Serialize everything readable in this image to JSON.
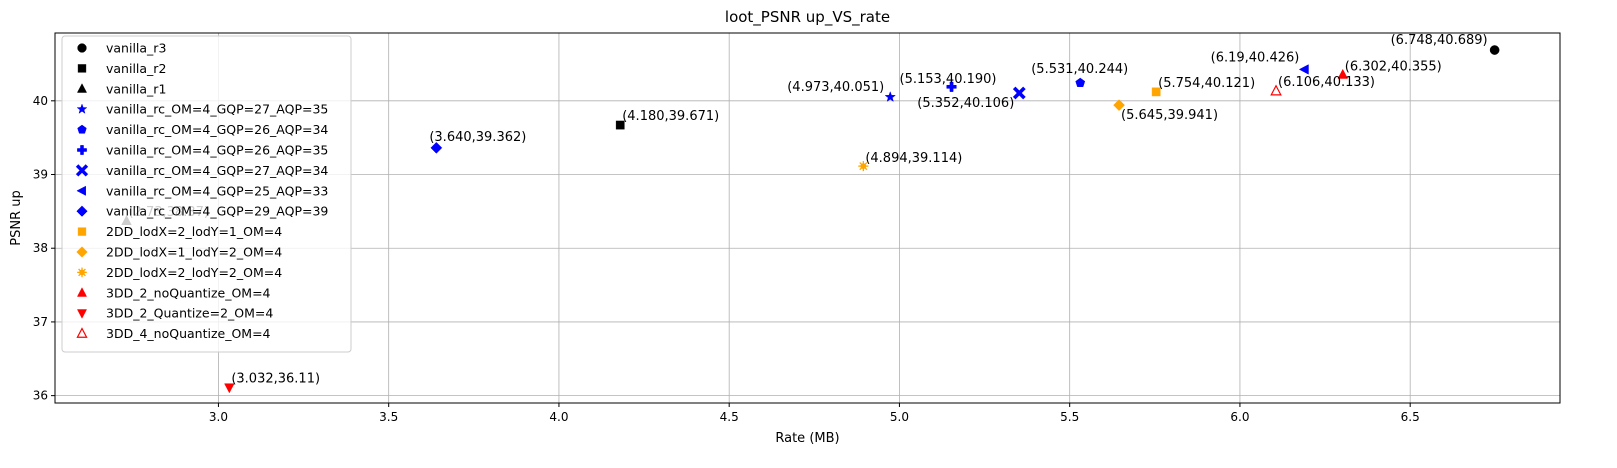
{
  "chart_data": {
    "type": "scatter",
    "title": "loot_PSNR up_VS_rate",
    "xlabel": "Rate (MB)",
    "ylabel": "PSNR up",
    "xlim": [
      2.52,
      6.94
    ],
    "ylim": [
      35.9,
      40.92
    ],
    "xticks": [
      "3.0",
      "3.5",
      "4.0",
      "4.5",
      "5.0",
      "5.5",
      "6.0",
      "6.5"
    ],
    "yticks": [
      "36",
      "37",
      "38",
      "39",
      "40"
    ],
    "grid": true,
    "legend_position": "upper-left",
    "series": [
      {
        "name": "vanilla_r3",
        "marker": "circle",
        "color": "#000000",
        "filled": true,
        "x": 6.748,
        "y": 40.689,
        "label": "(6.748,40.689)"
      },
      {
        "name": "vanilla_r2",
        "marker": "square",
        "color": "#000000",
        "filled": true,
        "x": 4.18,
        "y": 39.671,
        "label": "(4.180,39.671)"
      },
      {
        "name": "vanilla_r1",
        "marker": "triangle-up",
        "color": "#000000",
        "filled": true,
        "x": 2.73,
        "y": 38.37,
        "label": "(2.73,38.37)"
      },
      {
        "name": "vanilla_rc_OM=4_GQP=27_AQP=35",
        "marker": "star",
        "color": "#0000ff",
        "filled": true,
        "x": 4.973,
        "y": 40.051,
        "label": "(4.973,40.051)"
      },
      {
        "name": "vanilla_rc_OM=4_GQP=26_AQP=34",
        "marker": "pentagon",
        "color": "#0000ff",
        "filled": true,
        "x": 5.531,
        "y": 40.244,
        "label": "(5.531,40.244)"
      },
      {
        "name": "vanilla_rc_OM=4_GQP=26_AQP=35",
        "marker": "plus",
        "color": "#0000ff",
        "filled": true,
        "x": 5.153,
        "y": 40.19,
        "label": "(5.153,40.190)"
      },
      {
        "name": "vanilla_rc_OM=4_GQP=27_AQP=34",
        "marker": "x",
        "color": "#0000ff",
        "filled": true,
        "x": 5.352,
        "y": 40.106,
        "label": "(5.352,40.106)"
      },
      {
        "name": "vanilla_rc_OM=4_GQP=25_AQP=33",
        "marker": "triangle-left",
        "color": "#0000ff",
        "filled": true,
        "x": 6.19,
        "y": 40.426,
        "label": "(6.19,40.426)"
      },
      {
        "name": "vanilla_rc_OM=4_GQP=29_AQP=39",
        "marker": "diamond",
        "color": "#0000ff",
        "filled": true,
        "x": 3.64,
        "y": 39.362,
        "label": "(3.640,39.362)"
      },
      {
        "name": "2DD_lodX=2_lodY=1_OM=4",
        "marker": "square",
        "color": "#ffa500",
        "filled": true,
        "x": 5.754,
        "y": 40.121,
        "label": "(5.754,40.121)"
      },
      {
        "name": "2DD_lodX=1_lodY=2_OM=4",
        "marker": "diamond",
        "color": "#ffa500",
        "filled": true,
        "x": 5.645,
        "y": 39.941,
        "label": "(5.645,39.941)"
      },
      {
        "name": "2DD_lodX=2_lodY=2_OM=4",
        "marker": "sun",
        "color": "#ffa500",
        "filled": true,
        "x": 4.894,
        "y": 39.114,
        "label": "(4.894,39.114)"
      },
      {
        "name": "3DD_2_noQuantize_OM=4",
        "marker": "triangle-up",
        "color": "#ff0000",
        "filled": true,
        "x": 6.302,
        "y": 40.355,
        "label": "(6.302,40.355)"
      },
      {
        "name": "3DD_2_Quantize=2_OM=4",
        "marker": "triangle-down",
        "color": "#ff0000",
        "filled": true,
        "x": 3.032,
        "y": 36.11,
        "label": "(3.032,36.11)"
      },
      {
        "name": "3DD_4_noQuantize_OM=4",
        "marker": "triangle-up",
        "color": "#ff0000",
        "filled": false,
        "x": 6.106,
        "y": 40.133,
        "label": "(6.106,40.133)"
      }
    ]
  }
}
